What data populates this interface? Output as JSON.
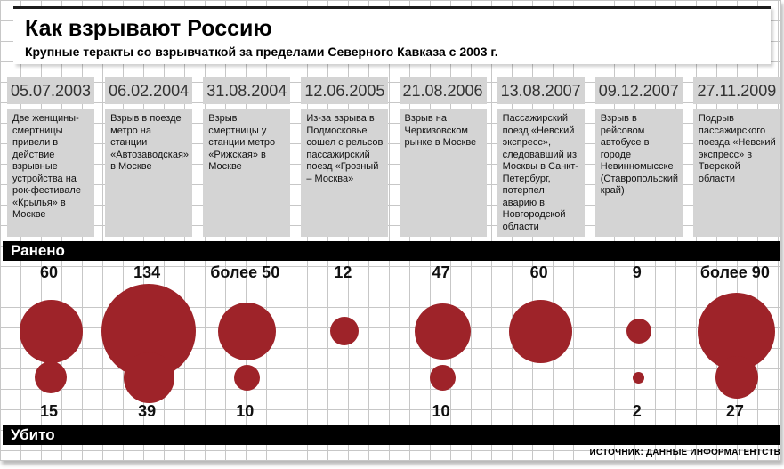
{
  "header": {
    "title": "Как взрывают Россию",
    "subtitle": "Крупные теракты со взрывчаткой за пределами Северного Кавказа с 2003 г."
  },
  "bands": {
    "wounded_label": "Ранено",
    "killed_label": "Убито"
  },
  "source": "ИСТОЧНИК: ДАННЫЕ ИНФОРМАГЕНТСТВ",
  "colors": {
    "bubble": "#9e2329",
    "box_gray": "#d4d4d4",
    "grid_line": "#c7c7c7",
    "band_black": "#000000"
  },
  "chart_data": {
    "type": "bubble",
    "title": "Как взрывают Россию",
    "subtitle": "Крупные теракты со взрывчаткой за пределами Северного Кавказа с 2003 г.",
    "rows": [
      "Ранено",
      "Убито"
    ],
    "size_encoding": "bubble diameter proportional to sqrt(casualties)",
    "events": [
      {
        "date": "05.07.2003",
        "description": "Две женщины-смертницы привели в действие взрывные устройства на рок-фестивале «Крылья» в Москве",
        "wounded_label": "60",
        "wounded": 60,
        "killed_label": "15",
        "killed": 15
      },
      {
        "date": "06.02.2004",
        "description": "Взрыв в поезде метро на станции «Автозаводская» в Москве",
        "wounded_label": "134",
        "wounded": 134,
        "killed_label": "39",
        "killed": 39
      },
      {
        "date": "31.08.2004",
        "description": "Взрыв смертницы у  станции метро «Рижская» в Москве",
        "wounded_label": "более 50",
        "wounded": 50,
        "killed_label": "10",
        "killed": 10
      },
      {
        "date": "12.06.2005",
        "description": "Из-за взрыва в Подмосковье сошел с рельсов пассажирский поезд «Грозный – Москва»",
        "wounded_label": "12",
        "wounded": 12,
        "killed_label": "",
        "killed": 0
      },
      {
        "date": "21.08.2006",
        "description": "Взрыв на Черкизовском рынке в Москве",
        "wounded_label": "47",
        "wounded": 47,
        "killed_label": "10",
        "killed": 10
      },
      {
        "date": "13.08.2007",
        "description": "Пассажирский поезд «Невский экспресс», следовавший из Москвы в Санкт-Петербург, потерпел аварию в Новгородской области",
        "wounded_label": "60",
        "wounded": 60,
        "killed_label": "",
        "killed": 0
      },
      {
        "date": "09.12.2007",
        "description": "Взрыв в рейсовом автобусе в городе Невинномысске (Ставропольский край)",
        "wounded_label": "9",
        "wounded": 9,
        "killed_label": "2",
        "killed": 2
      },
      {
        "date": "27.11.2009",
        "description": "Подрыв пассажирского поезда «Невский экспресс» в Тверской области",
        "wounded_label": "более 90",
        "wounded": 90,
        "killed_label": "27",
        "killed": 27
      }
    ]
  }
}
